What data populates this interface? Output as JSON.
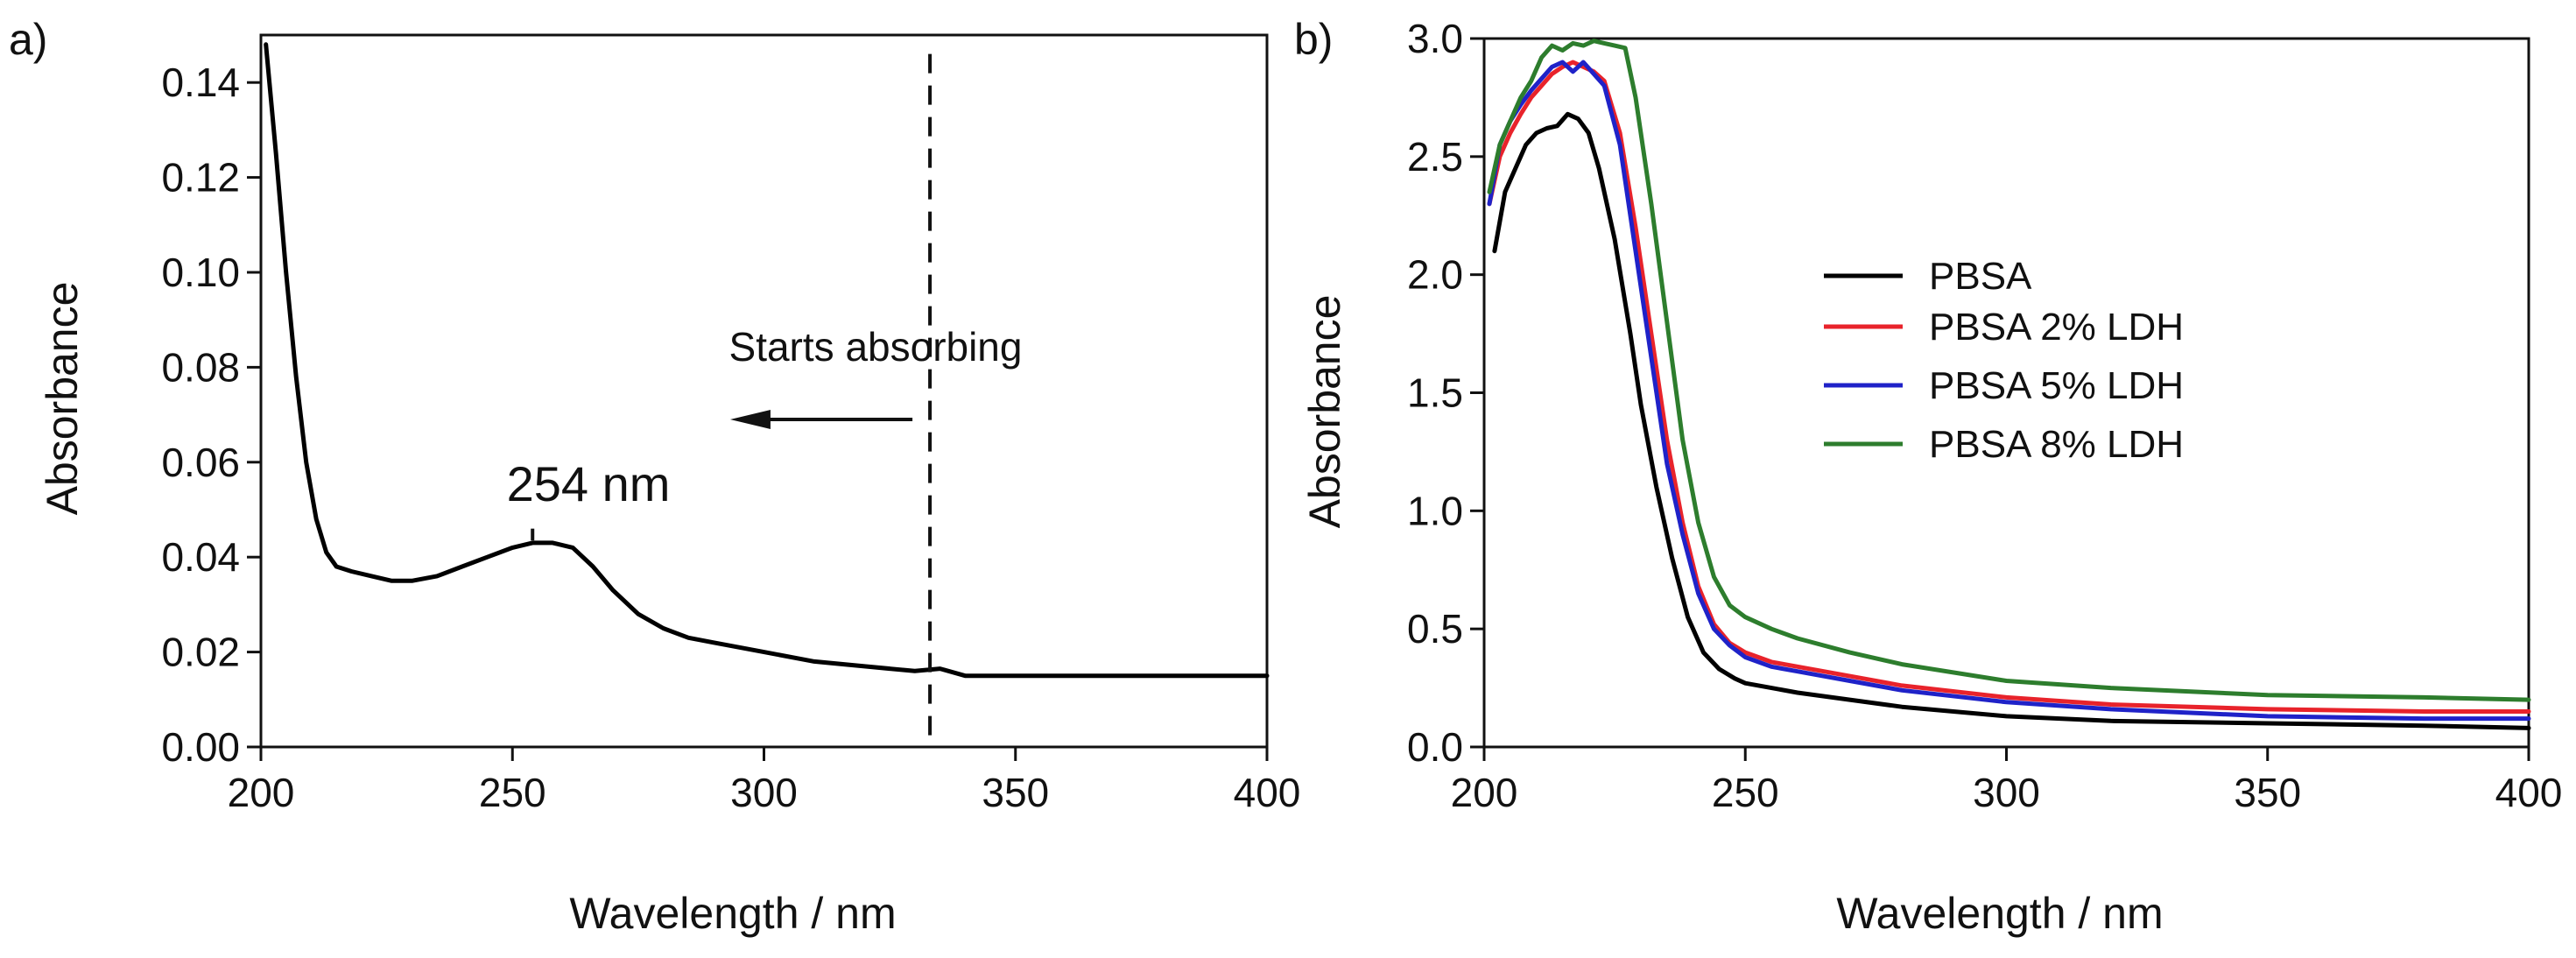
{
  "chart_data": [
    {
      "panel_label": "a)",
      "type": "line",
      "xlabel": "Wavelength / nm",
      "ylabel": "Absorbance",
      "xlim": [
        200,
        400
      ],
      "ylim": [
        0,
        0.15
      ],
      "xticks": [
        "200",
        "250",
        "300",
        "350",
        "400"
      ],
      "yticks": [
        "0.00",
        "0.02",
        "0.04",
        "0.06",
        "0.08",
        "0.10",
        "0.12",
        "0.14"
      ],
      "series": [
        {
          "name": "PBSA",
          "color": "#000000",
          "x": [
            201,
            203,
            205,
            207,
            209,
            211,
            213,
            215,
            218,
            222,
            226,
            230,
            235,
            240,
            245,
            250,
            254,
            258,
            262,
            266,
            270,
            275,
            280,
            285,
            290,
            300,
            310,
            320,
            330,
            335,
            340,
            350,
            360,
            370,
            380,
            390,
            400
          ],
          "y": [
            0.148,
            0.125,
            0.1,
            0.078,
            0.06,
            0.048,
            0.041,
            0.038,
            0.037,
            0.036,
            0.035,
            0.035,
            0.036,
            0.038,
            0.04,
            0.042,
            0.043,
            0.043,
            0.042,
            0.038,
            0.033,
            0.028,
            0.025,
            0.023,
            0.022,
            0.02,
            0.018,
            0.017,
            0.016,
            0.0165,
            0.015,
            0.015,
            0.015,
            0.015,
            0.015,
            0.015,
            0.015
          ]
        }
      ],
      "annotations": {
        "peak_label": "254 nm",
        "peak_x": 254,
        "arrow_text": "Starts absorbing",
        "dashed_line_x": 333
      }
    },
    {
      "panel_label": "b)",
      "type": "line",
      "xlabel": "Wavelength / nm",
      "ylabel": "Absorbance",
      "xlim": [
        200,
        400
      ],
      "ylim": [
        0,
        3.0
      ],
      "xticks": [
        "200",
        "250",
        "300",
        "350",
        "400"
      ],
      "yticks": [
        "0.0",
        "0.5",
        "1.0",
        "1.5",
        "2.0",
        "2.5",
        "3.0"
      ],
      "legend_position": "center-right",
      "series": [
        {
          "name": "PBSA",
          "color": "#000000",
          "x": [
            202,
            204,
            206,
            208,
            210,
            212,
            214,
            216,
            218,
            220,
            222,
            225,
            228,
            230,
            233,
            236,
            239,
            242,
            245,
            248,
            250,
            255,
            260,
            270,
            280,
            300,
            320,
            350,
            380,
            400
          ],
          "y": [
            2.1,
            2.35,
            2.45,
            2.55,
            2.6,
            2.62,
            2.63,
            2.68,
            2.66,
            2.6,
            2.45,
            2.15,
            1.75,
            1.45,
            1.1,
            0.8,
            0.55,
            0.4,
            0.33,
            0.29,
            0.27,
            0.25,
            0.23,
            0.2,
            0.17,
            0.13,
            0.11,
            0.1,
            0.09,
            0.08
          ]
        },
        {
          "name": "PBSA 2% LDH",
          "color": "#e8232b",
          "x": [
            201,
            203,
            205,
            207,
            209,
            211,
            213,
            215,
            217,
            219,
            221,
            223,
            226,
            229,
            232,
            235,
            238,
            241,
            244,
            247,
            250,
            255,
            260,
            270,
            280,
            300,
            320,
            350,
            380,
            400
          ],
          "y": [
            2.3,
            2.5,
            2.6,
            2.68,
            2.75,
            2.8,
            2.85,
            2.88,
            2.9,
            2.88,
            2.86,
            2.82,
            2.6,
            2.2,
            1.75,
            1.3,
            0.95,
            0.68,
            0.52,
            0.44,
            0.4,
            0.36,
            0.34,
            0.3,
            0.26,
            0.21,
            0.18,
            0.16,
            0.15,
            0.15
          ]
        },
        {
          "name": "PBSA 5% LDH",
          "color": "#1f22c8",
          "x": [
            201,
            203,
            205,
            207,
            209,
            211,
            213,
            215,
            217,
            219,
            221,
            223,
            226,
            229,
            232,
            235,
            238,
            241,
            244,
            247,
            250,
            255,
            260,
            270,
            280,
            300,
            320,
            350,
            380,
            400
          ],
          "y": [
            2.3,
            2.55,
            2.65,
            2.72,
            2.78,
            2.83,
            2.88,
            2.9,
            2.86,
            2.9,
            2.85,
            2.8,
            2.55,
            2.1,
            1.65,
            1.2,
            0.9,
            0.65,
            0.5,
            0.43,
            0.38,
            0.34,
            0.32,
            0.28,
            0.24,
            0.19,
            0.16,
            0.13,
            0.12,
            0.12
          ]
        },
        {
          "name": "PBSA 8% LDH",
          "color": "#2d7d2d",
          "x": [
            201,
            203,
            205,
            207,
            209,
            211,
            213,
            215,
            217,
            219,
            221,
            223,
            225,
            227,
            229,
            232,
            235,
            238,
            241,
            244,
            247,
            250,
            255,
            260,
            270,
            280,
            300,
            320,
            350,
            380,
            400
          ],
          "y": [
            2.35,
            2.55,
            2.65,
            2.75,
            2.82,
            2.92,
            2.97,
            2.95,
            2.98,
            2.97,
            2.99,
            2.98,
            2.97,
            2.96,
            2.75,
            2.3,
            1.8,
            1.3,
            0.95,
            0.72,
            0.6,
            0.55,
            0.5,
            0.46,
            0.4,
            0.35,
            0.28,
            0.25,
            0.22,
            0.21,
            0.2
          ]
        }
      ]
    }
  ]
}
